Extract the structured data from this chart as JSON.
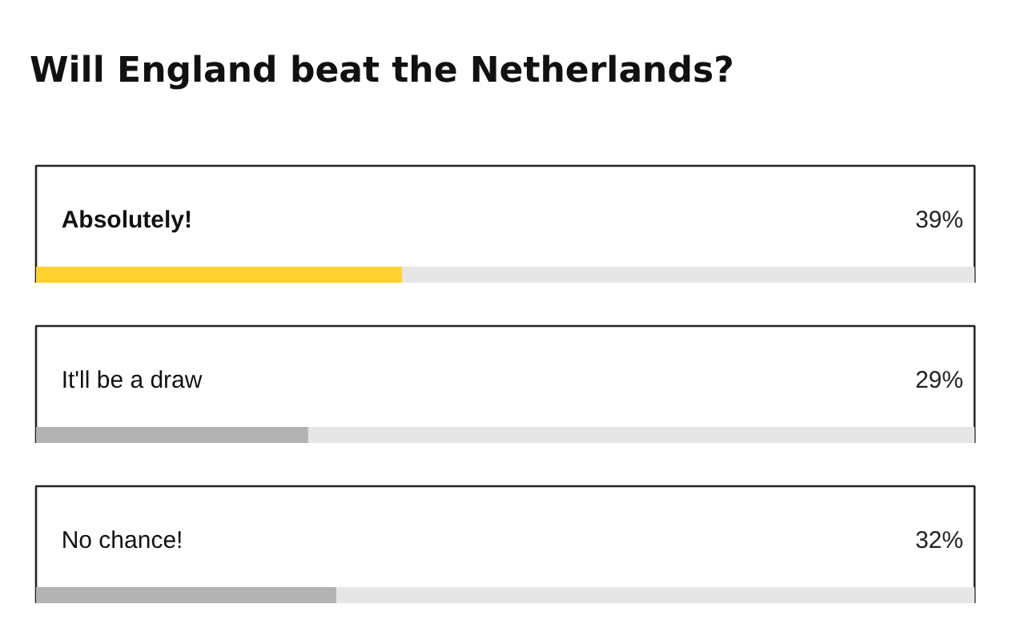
{
  "chart_data": {
    "type": "bar",
    "orientation": "horizontal",
    "title": "Will England beat the Netherlands?",
    "categories": [
      "Absolutely!",
      "It'll be a draw",
      "No chance!"
    ],
    "values": [
      39,
      29,
      32
    ],
    "colors": [
      "#ffd230",
      "#b3b3b3",
      "#b3b3b3"
    ],
    "value_labels": [
      "39%",
      "29%",
      "32%"
    ],
    "xlim": [
      0,
      100
    ],
    "grid": false
  }
}
